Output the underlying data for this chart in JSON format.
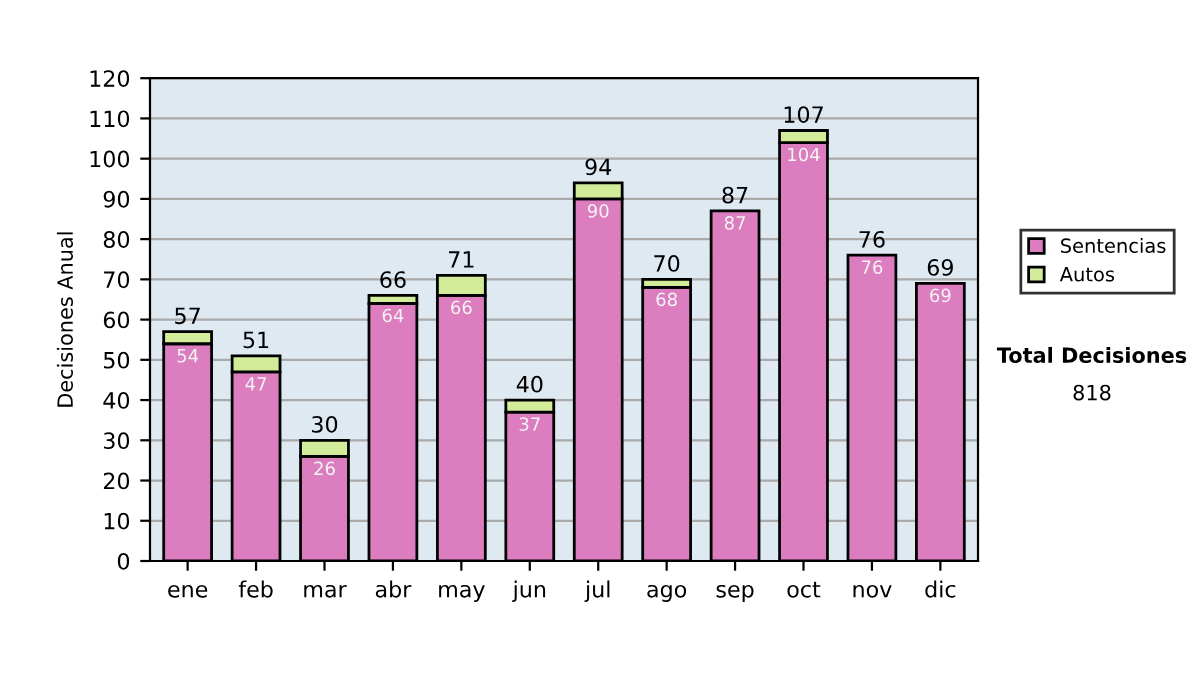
{
  "chart_data": {
    "type": "bar",
    "stacked": true,
    "ylabel": "Decisiones Anual",
    "categories": [
      "ene",
      "feb",
      "mar",
      "abr",
      "may",
      "jun",
      "jul",
      "ago",
      "sep",
      "oct",
      "nov",
      "dic"
    ],
    "series": [
      {
        "name": "Sentencias",
        "color": "#dc7dc0",
        "values": [
          54,
          47,
          26,
          64,
          66,
          37,
          90,
          68,
          87,
          104,
          76,
          69
        ],
        "value_labels": [
          "54",
          "47",
          "26",
          "64",
          "66",
          "37",
          "90",
          "68",
          "87",
          "104",
          "76",
          "69"
        ]
      },
      {
        "name": "Autos",
        "color": "#d2ec9a",
        "values": [
          3,
          4,
          4,
          2,
          5,
          3,
          4,
          2,
          0,
          3,
          0,
          0
        ]
      }
    ],
    "totals": [
      "57",
      "51",
      "30",
      "66",
      "71",
      "40",
      "94",
      "70",
      "87",
      "107",
      "76",
      "69"
    ],
    "ylim": [
      0,
      120
    ],
    "yticks": [
      0,
      10,
      20,
      30,
      40,
      50,
      60,
      70,
      80,
      90,
      100,
      110,
      120
    ],
    "grid": "y",
    "legend": "right",
    "annotations": [
      "Total Decisiones",
      "818"
    ]
  }
}
